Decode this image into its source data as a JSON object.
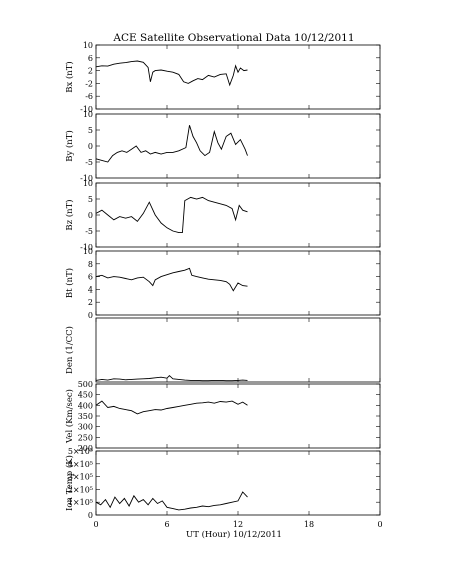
{
  "chart_data": {
    "type": "line",
    "title": "ACE Satellite Observational Data   10/12/2011",
    "xlabel": "UT (Hour)  10/12/2011",
    "xlim": [
      0,
      24
    ],
    "x_ticks": [
      "0",
      "6",
      "12",
      "18",
      "0"
    ],
    "panels": [
      {
        "id": "bx",
        "ylabel": "Bx (nT)",
        "ylim": [
          -10,
          10
        ],
        "y_ticks": [
          "10",
          "6",
          "2",
          "-2",
          "-6",
          "-10"
        ],
        "x": [
          0,
          0.5,
          1.0,
          1.5,
          2.0,
          2.5,
          3.0,
          3.5,
          4.0,
          4.4,
          4.6,
          4.8,
          5.0,
          5.5,
          6.0,
          6.5,
          7.0,
          7.4,
          7.8,
          8.2,
          8.6,
          9.0,
          9.5,
          10.0,
          10.5,
          11.0,
          11.3,
          11.6,
          11.8,
          12.0,
          12.2,
          12.5,
          12.8
        ],
        "y": [
          3.2,
          3.5,
          3.4,
          4.0,
          4.3,
          4.5,
          4.8,
          5.0,
          4.6,
          3.0,
          -1.5,
          1.5,
          2.0,
          2.2,
          1.8,
          1.5,
          0.8,
          -1.5,
          -2.0,
          -1.2,
          -0.5,
          -0.8,
          0.5,
          0.0,
          0.8,
          1.0,
          -2.5,
          0.5,
          3.5,
          1.5,
          2.8,
          2.0,
          2.2
        ]
      },
      {
        "id": "by",
        "ylabel": "By (nT)",
        "ylim": [
          -10,
          10
        ],
        "y_ticks": [
          "10",
          "5",
          "0",
          "-5",
          "-10"
        ],
        "x": [
          0,
          0.5,
          1.0,
          1.4,
          1.8,
          2.2,
          2.6,
          3.0,
          3.4,
          3.8,
          4.2,
          4.6,
          5.0,
          5.5,
          6.0,
          6.5,
          7.0,
          7.6,
          7.9,
          8.2,
          8.5,
          8.8,
          9.2,
          9.6,
          10.0,
          10.3,
          10.6,
          11.0,
          11.4,
          11.8,
          12.2,
          12.6,
          12.8
        ],
        "y": [
          -4.0,
          -4.5,
          -5.0,
          -3.0,
          -2.0,
          -1.5,
          -2.0,
          -1.0,
          0.0,
          -2.0,
          -1.5,
          -2.5,
          -2.0,
          -2.5,
          -2.0,
          -2.0,
          -1.5,
          -0.5,
          6.5,
          3.0,
          1.0,
          -1.5,
          -3.0,
          -2.0,
          4.5,
          1.0,
          -1.0,
          3.0,
          4.0,
          0.5,
          2.0,
          -1.0,
          -3.0
        ]
      },
      {
        "id": "bz",
        "ylabel": "Bz (nT)",
        "ylim": [
          -10,
          10
        ],
        "y_ticks": [
          "10",
          "5",
          "0",
          "-5",
          "-10"
        ],
        "x": [
          0,
          0.5,
          1.0,
          1.5,
          2.0,
          2.5,
          3.0,
          3.5,
          4.0,
          4.5,
          5.0,
          5.5,
          6.0,
          6.5,
          7.0,
          7.3,
          7.5,
          8.0,
          8.5,
          9.0,
          9.5,
          10.0,
          10.5,
          11.0,
          11.5,
          11.8,
          12.1,
          12.4,
          12.8
        ],
        "y": [
          0.5,
          1.5,
          0.0,
          -1.5,
          -0.5,
          -1.0,
          -0.5,
          -2.0,
          0.5,
          4.0,
          0.0,
          -2.5,
          -4.0,
          -5.0,
          -5.5,
          -5.5,
          4.5,
          5.5,
          5.0,
          5.5,
          4.5,
          4.0,
          3.5,
          3.0,
          2.0,
          -1.5,
          3.0,
          1.5,
          1.0
        ]
      },
      {
        "id": "bt",
        "ylabel": "Bt (nT)",
        "ylim": [
          0,
          10
        ],
        "y_ticks": [
          "10",
          "8",
          "6",
          "4",
          "2",
          "0"
        ],
        "x": [
          0,
          0.5,
          1.0,
          1.5,
          2.0,
          2.5,
          3.0,
          3.5,
          4.0,
          4.5,
          4.8,
          5.0,
          5.5,
          6.0,
          6.5,
          7.0,
          7.5,
          7.9,
          8.1,
          8.5,
          9.0,
          9.5,
          10.0,
          10.5,
          11.0,
          11.3,
          11.6,
          12.0,
          12.4,
          12.8
        ],
        "y": [
          6.0,
          6.2,
          5.8,
          6.0,
          5.9,
          5.7,
          5.5,
          5.8,
          5.9,
          5.2,
          4.6,
          5.5,
          6.0,
          6.3,
          6.6,
          6.8,
          7.0,
          7.3,
          6.2,
          6.0,
          5.8,
          5.6,
          5.5,
          5.4,
          5.2,
          4.8,
          3.8,
          5.0,
          4.6,
          4.5
        ]
      },
      {
        "id": "den",
        "ylabel": "Den (1/CC)",
        "ylim": [
          0,
          20
        ],
        "y_ticks": [],
        "x": [
          0,
          0.5,
          1.0,
          1.5,
          2.0,
          2.5,
          3.0,
          3.5,
          4.0,
          4.5,
          5.0,
          5.5,
          6.0,
          6.2,
          6.5,
          7.0,
          7.5,
          8.0,
          8.5,
          9.0,
          9.5,
          10.0,
          10.5,
          11.0,
          11.5,
          12.0,
          12.4,
          12.8
        ],
        "y": [
          0.5,
          0.8,
          0.6,
          1.0,
          0.9,
          0.7,
          0.8,
          0.9,
          1.0,
          1.1,
          1.3,
          1.5,
          1.2,
          2.0,
          1.0,
          0.8,
          0.6,
          0.5,
          0.5,
          0.4,
          0.4,
          0.5,
          0.5,
          0.4,
          0.4,
          0.5,
          0.6,
          0.5
        ]
      },
      {
        "id": "vel",
        "ylabel": "Vel (Km/sec)",
        "ylim": [
          200,
          500
        ],
        "y_ticks": [
          "500",
          "450",
          "400",
          "350",
          "300",
          "250",
          "200"
        ],
        "x": [
          0,
          0.5,
          1.0,
          1.5,
          2.0,
          2.5,
          3.0,
          3.5,
          4.0,
          4.5,
          5.0,
          5.5,
          6.0,
          6.5,
          7.0,
          7.5,
          8.0,
          8.5,
          9.0,
          9.5,
          10.0,
          10.5,
          11.0,
          11.5,
          12.0,
          12.4,
          12.8
        ],
        "y": [
          400,
          420,
          390,
          395,
          385,
          380,
          375,
          360,
          370,
          375,
          380,
          378,
          385,
          390,
          395,
          400,
          405,
          410,
          412,
          415,
          410,
          418,
          415,
          420,
          405,
          415,
          400
        ]
      },
      {
        "id": "temp",
        "ylabel": "Ion Temp (K)",
        "ylim": [
          0,
          500000
        ],
        "y_ticks": [
          "5×10⁵",
          "4×10⁵",
          "3×10⁵",
          "2×10⁵",
          "1×10⁵",
          "0"
        ],
        "x": [
          0,
          0.4,
          0.8,
          1.2,
          1.6,
          2.0,
          2.4,
          2.8,
          3.2,
          3.6,
          4.0,
          4.4,
          4.8,
          5.2,
          5.6,
          6.0,
          6.5,
          7.0,
          7.5,
          8.0,
          8.5,
          9.0,
          9.5,
          10.0,
          10.5,
          11.0,
          11.5,
          12.0,
          12.4,
          12.8
        ],
        "y": [
          100000,
          80000,
          120000,
          60000,
          140000,
          90000,
          130000,
          70000,
          150000,
          100000,
          120000,
          80000,
          130000,
          90000,
          110000,
          60000,
          50000,
          40000,
          45000,
          55000,
          60000,
          70000,
          65000,
          75000,
          80000,
          90000,
          100000,
          110000,
          180000,
          140000
        ]
      }
    ]
  }
}
